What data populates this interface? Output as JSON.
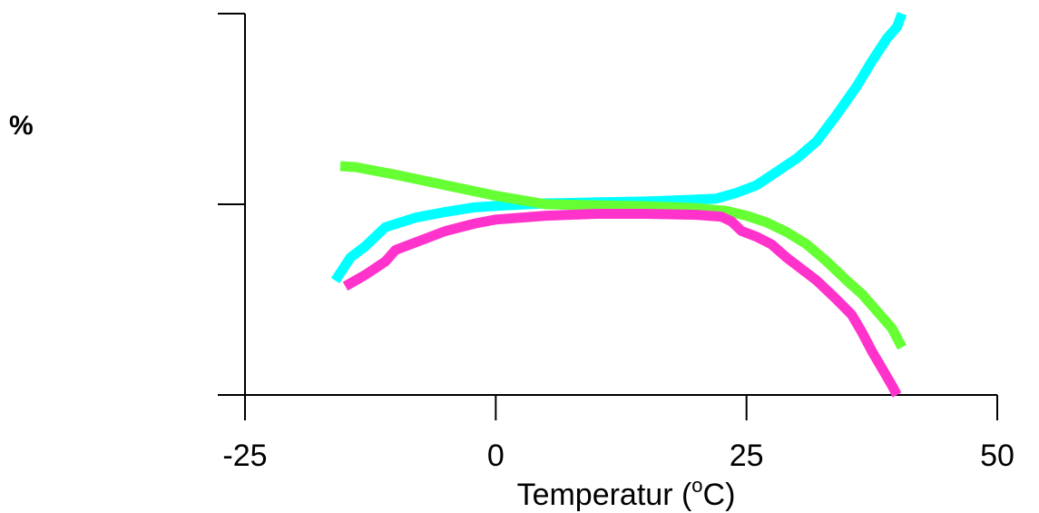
{
  "chart_data": {
    "type": "line",
    "title": "",
    "xlabel": "Temperatur (",
    "xlabel_sup": "o",
    "xlabel_end": "C)",
    "ylabel": "%",
    "xlim": [
      -25,
      50
    ],
    "ylim": [
      0,
      2
    ],
    "x_ticks": [
      -25,
      0,
      25,
      50
    ],
    "x_tick_labels": [
      "-25",
      "0",
      "25",
      "50"
    ],
    "y_ticks": [
      0,
      1,
      2
    ],
    "grid": false,
    "legend": "none",
    "series": [
      {
        "color": "#00ffff",
        "points": [
          [
            -16,
            0.6
          ],
          [
            -14.5,
            0.72
          ],
          [
            -13,
            0.78
          ],
          [
            -11,
            0.88
          ],
          [
            -8,
            0.93
          ],
          [
            -5,
            0.96
          ],
          [
            -2,
            0.985
          ],
          [
            1,
            0.995
          ],
          [
            5,
            1.005
          ],
          [
            10,
            1.01
          ],
          [
            15,
            1.015
          ],
          [
            20,
            1.025
          ],
          [
            22,
            1.03
          ],
          [
            24,
            1.06
          ],
          [
            26,
            1.1
          ],
          [
            28,
            1.17
          ],
          [
            30,
            1.24
          ],
          [
            32,
            1.33
          ],
          [
            34,
            1.47
          ],
          [
            36,
            1.62
          ],
          [
            37.5,
            1.75
          ],
          [
            39,
            1.87
          ],
          [
            40,
            1.93
          ],
          [
            40.5,
            2.0
          ]
        ]
      },
      {
        "color": "#66ff33",
        "points": [
          [
            -15.5,
            1.2
          ],
          [
            -14,
            1.195
          ],
          [
            -10,
            1.155
          ],
          [
            -5,
            1.1
          ],
          [
            0,
            1.045
          ],
          [
            5,
            1.0
          ],
          [
            10,
            0.995
          ],
          [
            15,
            0.99
          ],
          [
            20,
            0.98
          ],
          [
            23,
            0.965
          ],
          [
            25,
            0.94
          ],
          [
            27,
            0.905
          ],
          [
            29,
            0.855
          ],
          [
            31,
            0.79
          ],
          [
            33,
            0.7
          ],
          [
            35,
            0.6
          ],
          [
            36.5,
            0.53
          ],
          [
            38,
            0.44
          ],
          [
            39.5,
            0.35
          ],
          [
            40.5,
            0.25
          ]
        ]
      },
      {
        "color": "#ff33cc",
        "points": [
          [
            -15,
            0.57
          ],
          [
            -13,
            0.63
          ],
          [
            -11,
            0.7
          ],
          [
            -10,
            0.76
          ],
          [
            -8,
            0.8
          ],
          [
            -5,
            0.86
          ],
          [
            -2,
            0.9
          ],
          [
            0,
            0.92
          ],
          [
            5,
            0.94
          ],
          [
            10,
            0.95
          ],
          [
            15,
            0.95
          ],
          [
            20,
            0.945
          ],
          [
            22.5,
            0.935
          ],
          [
            23.5,
            0.91
          ],
          [
            24.5,
            0.86
          ],
          [
            26,
            0.83
          ],
          [
            27.5,
            0.79
          ],
          [
            29,
            0.72
          ],
          [
            30.5,
            0.66
          ],
          [
            32,
            0.6
          ],
          [
            33,
            0.55
          ],
          [
            34,
            0.5
          ],
          [
            35.5,
            0.42
          ],
          [
            36.5,
            0.33
          ],
          [
            37.5,
            0.23
          ],
          [
            38.5,
            0.14
          ],
          [
            39.5,
            0.05
          ],
          [
            40,
            0.0
          ]
        ]
      }
    ]
  }
}
